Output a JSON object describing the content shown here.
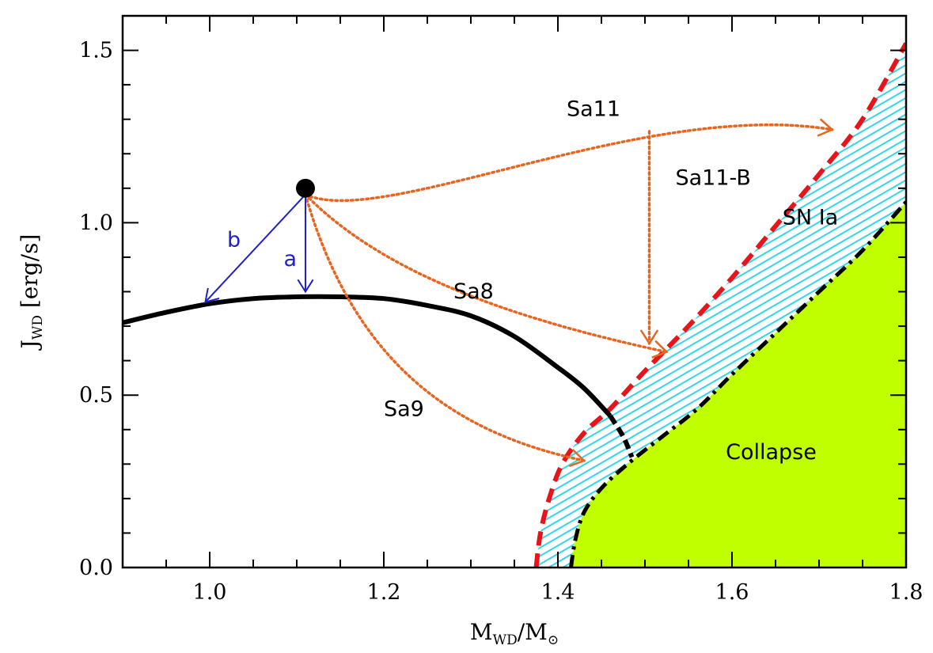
{
  "chart_data": {
    "type": "line",
    "title": "",
    "xlabel": {
      "main": "M",
      "sub": "WD",
      "slash": "/M",
      "sun": "⊙"
    },
    "ylabel": {
      "main": "J",
      "sub": "WD",
      "units": " [erg/s]"
    },
    "xlim": [
      0.9,
      1.8
    ],
    "ylim": [
      0.0,
      1.6
    ],
    "x_ticks": [
      "1.0",
      "1.2",
      "1.4",
      "1.6",
      "1.8"
    ],
    "y_ticks": [
      "0.0",
      "0.5",
      "1.0",
      "1.5"
    ],
    "x_tick_values": [
      1.0,
      1.2,
      1.4,
      1.6,
      1.8
    ],
    "y_tick_values": [
      0.0,
      0.5,
      1.0,
      1.5
    ],
    "grid": false,
    "colors": {
      "black_curve": "#000000",
      "red_boundary": "#e8141c",
      "collapse_fill": "#bfff00",
      "hatch": "#33d6e8",
      "orange_paths": "#e8651f",
      "blue_arrows": "#2020cc"
    },
    "start_point": {
      "x": 1.11,
      "y": 1.1
    },
    "black_curve": {
      "x": [
        0.9,
        0.95,
        1.0,
        1.05,
        1.1,
        1.15,
        1.2,
        1.25,
        1.3,
        1.35,
        1.4,
        1.43,
        1.46,
        1.475,
        1.485
      ],
      "y": [
        0.71,
        0.74,
        0.765,
        0.78,
        0.785,
        0.785,
        0.78,
        0.76,
        0.73,
        0.67,
        0.58,
        0.52,
        0.44,
        0.38,
        0.32
      ]
    },
    "red_dashed_boundary": {
      "x": [
        1.375,
        1.38,
        1.39,
        1.405,
        1.43,
        1.46,
        1.5,
        1.55,
        1.6,
        1.65,
        1.7,
        1.75,
        1.8
      ],
      "y": [
        0.0,
        0.1,
        0.2,
        0.3,
        0.39,
        0.46,
        0.57,
        0.7,
        0.84,
        0.99,
        1.14,
        1.3,
        1.52
      ]
    },
    "dashdot_collapse_boundary": {
      "x": [
        1.415,
        1.42,
        1.43,
        1.45,
        1.48,
        1.52,
        1.56,
        1.6,
        1.65,
        1.7,
        1.75,
        1.8
      ],
      "y": [
        0.0,
        0.08,
        0.16,
        0.23,
        0.3,
        0.38,
        0.46,
        0.56,
        0.68,
        0.8,
        0.92,
        1.06
      ]
    },
    "paths": [
      {
        "label": "Sa11",
        "label_x": 1.41,
        "label_y": 1.31,
        "end_x": 1.715,
        "end_y": 1.27
      },
      {
        "label": "Sa11-B",
        "label_x": 1.535,
        "label_y": 1.11,
        "end_x": 1.505,
        "end_y": 0.65
      },
      {
        "label": "Sa8",
        "label_x": 1.28,
        "label_y": 0.78,
        "end_x": 1.525,
        "end_y": 0.625
      },
      {
        "label": "Sa9",
        "label_x": 1.2,
        "label_y": 0.44,
        "end_x": 1.43,
        "end_y": 0.31
      }
    ],
    "arrows": [
      {
        "label": "a",
        "label_x": 1.085,
        "label_y": 0.875,
        "end_x": 1.11,
        "end_y": 0.8
      },
      {
        "label": "b",
        "label_x": 1.02,
        "label_y": 0.93,
        "end_x": 0.995,
        "end_y": 0.77
      }
    ],
    "region_labels": [
      {
        "label": "SN Ia",
        "x": 1.69,
        "y": 0.995
      },
      {
        "label": "Collapse",
        "x": 1.645,
        "y": 0.315
      }
    ]
  }
}
